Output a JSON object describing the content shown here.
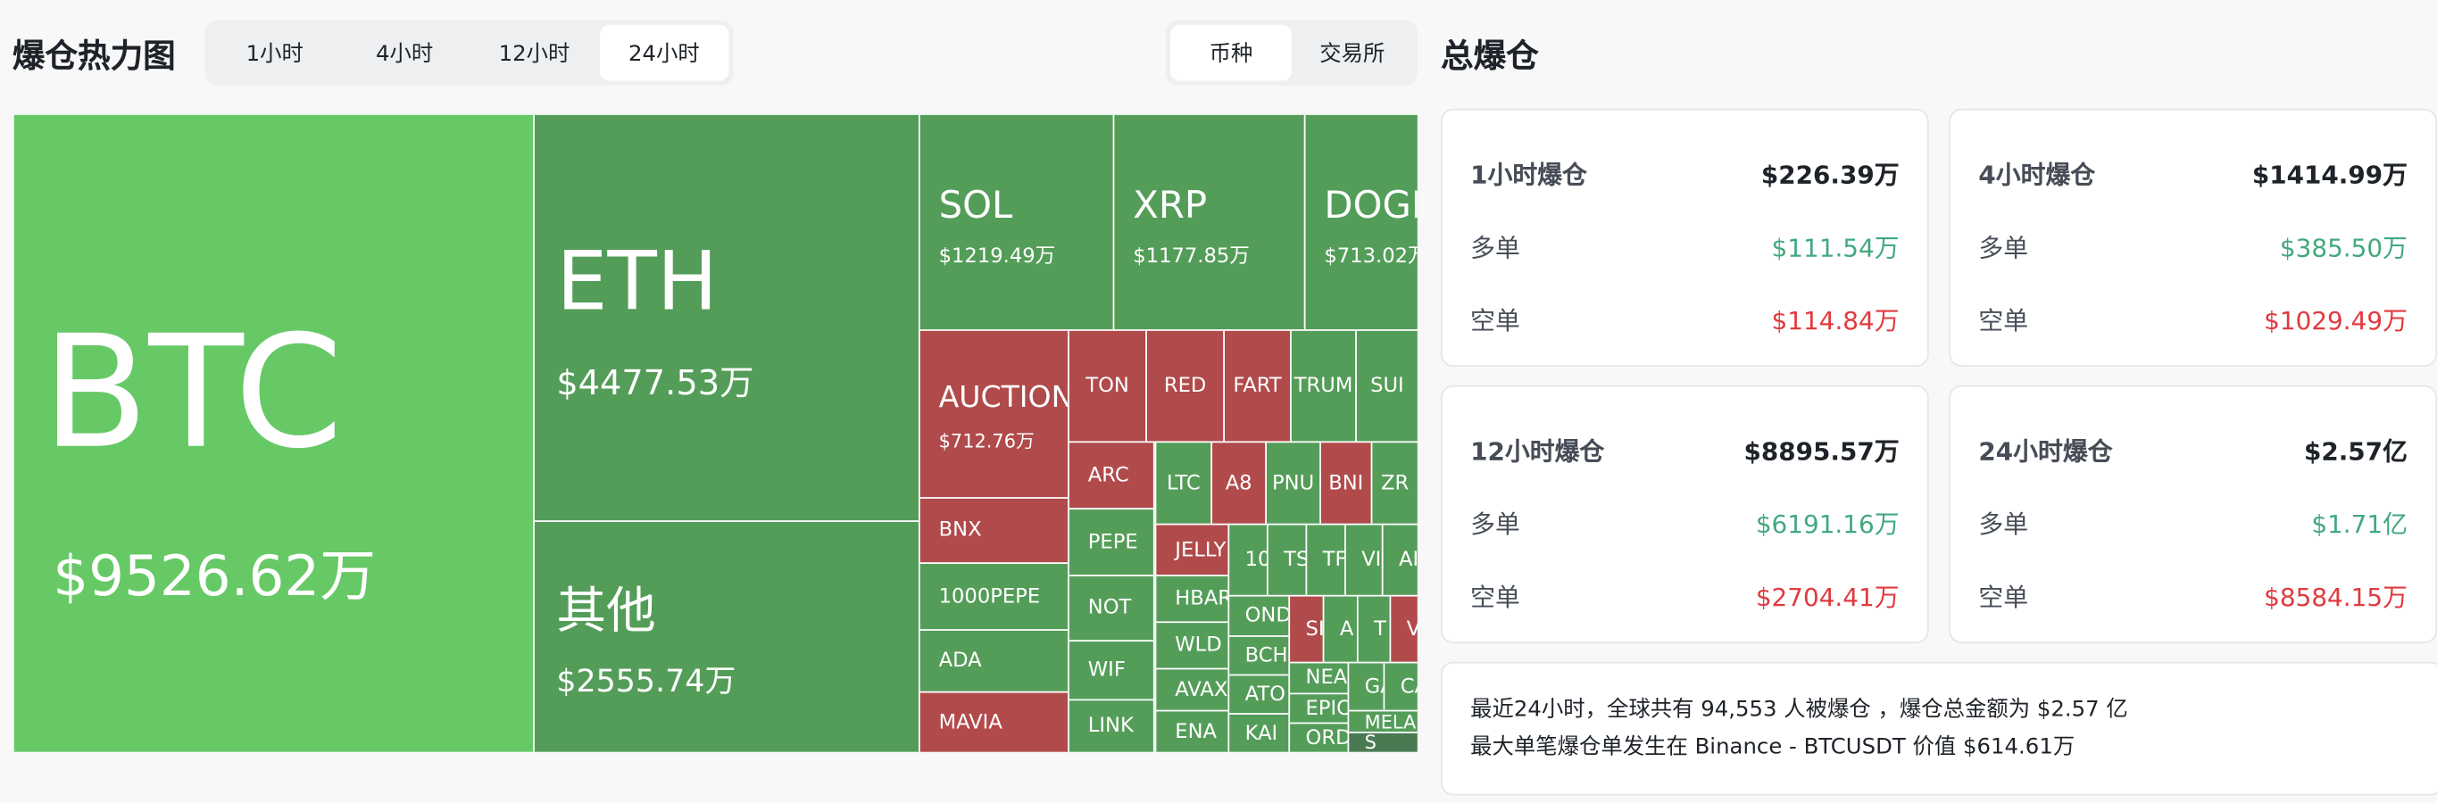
{
  "heatmap": {
    "title": "爆仓热力图",
    "time_tabs": [
      {
        "label": "1小时",
        "active": false
      },
      {
        "label": "4小时",
        "active": false
      },
      {
        "label": "12小时",
        "active": false
      },
      {
        "label": "24小时",
        "active": true
      }
    ],
    "group_tabs": [
      {
        "label": "币种",
        "active": true
      },
      {
        "label": "交易所",
        "active": false
      }
    ],
    "colors": {
      "btc": "#66c966",
      "long": "#549d59",
      "short": "#b14a4b",
      "other": "#4a7a52"
    },
    "tiles": [
      {
        "label": "BTC",
        "value": "$9526.62万",
        "color": "btc"
      },
      {
        "label": "ETH",
        "value": "$4477.53万",
        "color": "long"
      },
      {
        "label": "其他",
        "value": "$2555.74万",
        "color": "long"
      },
      {
        "label": "SOL",
        "value": "$1219.49万",
        "color": "long"
      },
      {
        "label": "XRP",
        "value": "$1177.85万",
        "color": "long"
      },
      {
        "label": "DOGE",
        "value": "$713.02万",
        "color": "long"
      },
      {
        "label": "AUCTION",
        "value": "$712.76万",
        "color": "short"
      },
      {
        "label": "BNX",
        "value": "",
        "color": "short"
      },
      {
        "label": "1000PEPE",
        "value": "",
        "color": "long"
      },
      {
        "label": "ADA",
        "value": "",
        "color": "long"
      },
      {
        "label": "MAVIA",
        "value": "",
        "color": "short"
      },
      {
        "label": "TON",
        "value": "",
        "color": "short"
      },
      {
        "label": "RED",
        "value": "",
        "color": "short"
      },
      {
        "label": "FART",
        "value": "",
        "color": "short"
      },
      {
        "label": "TRUM",
        "value": "",
        "color": "long"
      },
      {
        "label": "SUI",
        "value": "",
        "color": "long"
      },
      {
        "label": "ARC",
        "value": "",
        "color": "short"
      },
      {
        "label": "PEPE",
        "value": "",
        "color": "long"
      },
      {
        "label": "NOT",
        "value": "",
        "color": "long"
      },
      {
        "label": "WIF",
        "value": "",
        "color": "long"
      },
      {
        "label": "LINK",
        "value": "",
        "color": "long"
      },
      {
        "label": "LTC",
        "value": "",
        "color": "long"
      },
      {
        "label": "A8",
        "value": "",
        "color": "short"
      },
      {
        "label": "PNU",
        "value": "",
        "color": "long"
      },
      {
        "label": "BNI",
        "value": "",
        "color": "short"
      },
      {
        "label": "ZR",
        "value": "",
        "color": "long"
      },
      {
        "label": "JELLY",
        "value": "",
        "color": "short"
      },
      {
        "label": "HBAR",
        "value": "",
        "color": "long"
      },
      {
        "label": "WLD",
        "value": "",
        "color": "long"
      },
      {
        "label": "AVAX",
        "value": "",
        "color": "long"
      },
      {
        "label": "ENA",
        "value": "",
        "color": "long"
      },
      {
        "label": "10",
        "value": "",
        "color": "long"
      },
      {
        "label": "TS",
        "value": "",
        "color": "long"
      },
      {
        "label": "TF",
        "value": "",
        "color": "long"
      },
      {
        "label": "VI",
        "value": "",
        "color": "long"
      },
      {
        "label": "AI",
        "value": "",
        "color": "long"
      },
      {
        "label": "OND",
        "value": "",
        "color": "long"
      },
      {
        "label": "BCH",
        "value": "",
        "color": "long"
      },
      {
        "label": "ATO",
        "value": "",
        "color": "long"
      },
      {
        "label": "KAI",
        "value": "",
        "color": "long"
      },
      {
        "label": "SI",
        "value": "",
        "color": "short"
      },
      {
        "label": "A",
        "value": "",
        "color": "long"
      },
      {
        "label": "T",
        "value": "",
        "color": "long"
      },
      {
        "label": "V",
        "value": "",
        "color": "short"
      },
      {
        "label": "NEA",
        "value": "",
        "color": "long"
      },
      {
        "label": "EPIC",
        "value": "",
        "color": "long"
      },
      {
        "label": "ORD",
        "value": "",
        "color": "long"
      },
      {
        "label": "GA",
        "value": "",
        "color": "long"
      },
      {
        "label": "CA",
        "value": "",
        "color": "long"
      },
      {
        "label": "MELA",
        "value": "",
        "color": "long"
      },
      {
        "label": "S",
        "value": "",
        "color": "other"
      }
    ]
  },
  "totals": {
    "title": "总爆仓",
    "long_label": "多单",
    "short_label": "空单",
    "cards": [
      {
        "label": "1小时爆仓",
        "total": "$226.39万",
        "long": "$111.54万",
        "short": "$114.84万"
      },
      {
        "label": "4小时爆仓",
        "total": "$1414.99万",
        "long": "$385.50万",
        "short": "$1029.49万"
      },
      {
        "label": "12小时爆仓",
        "total": "$8895.57万",
        "long": "$6191.16万",
        "short": "$2704.41万"
      },
      {
        "label": "24小时爆仓",
        "total": "$2.57亿",
        "long": "$1.71亿",
        "short": "$8584.15万"
      }
    ],
    "summary_line1": "最近24小时，全球共有 94,553 人被爆仓 ，爆仓总金额为 $2.57 亿",
    "summary_line2": "最大单笔爆仓单发生在 Binance - BTCUSDT 价值 $614.61万"
  }
}
